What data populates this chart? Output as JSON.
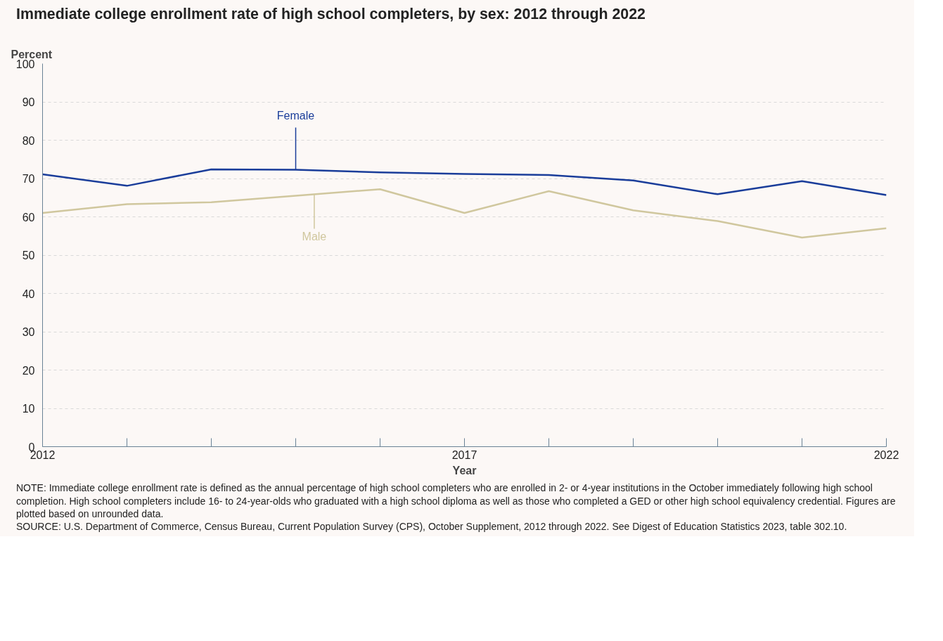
{
  "chart_data": {
    "type": "line",
    "title": "Immediate college enrollment rate of high school completers, by sex: 2012 through 2022",
    "ylabel": "Percent",
    "xlabel": "Year",
    "x": [
      2012,
      2013,
      2014,
      2015,
      2016,
      2017,
      2018,
      2019,
      2020,
      2021,
      2022
    ],
    "series": [
      {
        "name": "Female",
        "color": "#1a3d9a",
        "values": [
          71.1,
          68.1,
          72.4,
          72.3,
          71.6,
          71.2,
          70.9,
          69.5,
          65.9,
          69.3,
          65.7
        ]
      },
      {
        "name": "Male",
        "color": "#d0c79e",
        "values": [
          61.0,
          63.3,
          63.8,
          65.5,
          67.2,
          61.0,
          66.7,
          61.7,
          58.9,
          54.6,
          57.0
        ]
      }
    ],
    "xlim": [
      2012,
      2022
    ],
    "xticks": [
      2012,
      {
        "value": 2013,
        "label": null
      },
      {
        "value": 2014,
        "label": null
      },
      {
        "value": 2015,
        "label": null
      },
      {
        "value": 2016,
        "label": null
      },
      2017,
      {
        "value": 2018,
        "label": null
      },
      {
        "value": 2019,
        "label": null
      },
      {
        "value": 2020,
        "label": null
      },
      {
        "value": 2021,
        "label": null
      },
      2022
    ],
    "ylim": [
      0,
      100
    ],
    "yticks": [
      0,
      10,
      20,
      30,
      40,
      50,
      60,
      70,
      80,
      90,
      100
    ],
    "grid": "y",
    "legend": false,
    "marker": "none",
    "line_style": "solid",
    "annotations": [
      "NOTE: Immediate college enrollment rate is defined as the annual percentage of high school completers who are enrolled in 2- or 4-year institutions in the October immediately following high school completion. High school completers include 16- to 24-year-olds who graduated with a high school diploma as well as those who completed a GED or other high school equivalency credential. Figures are plotted based on unrounded data.",
      "SOURCE: U.S. Department of Commerce, Census Bureau, Current Population Survey (CPS), October Supplement, 2012 through 2022. See Digest of Education Statistics 2023, table 302.10."
    ]
  }
}
